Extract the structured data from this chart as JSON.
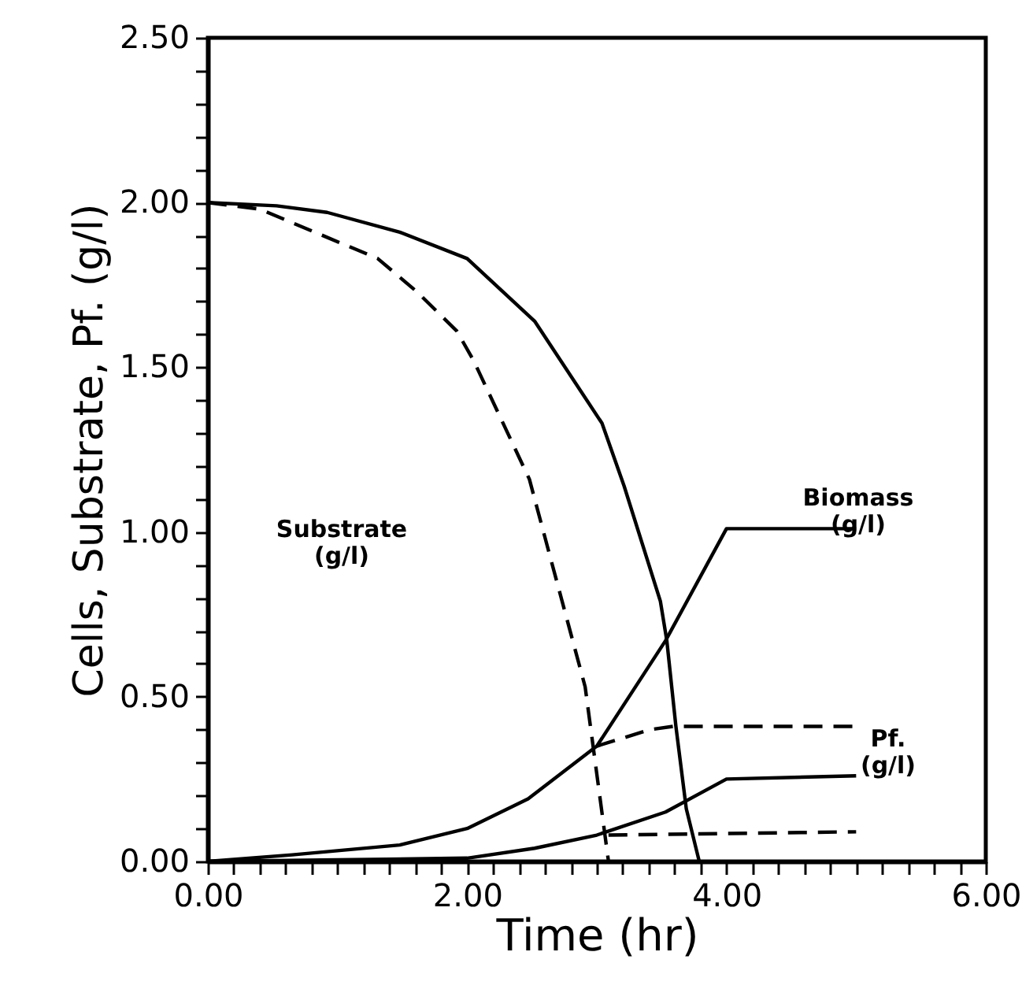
{
  "chart_data": {
    "type": "line",
    "xlabel": "Time  (hr)",
    "ylabel": "Cells,  Substrate,  Pf.  (g/l)",
    "xlim": [
      0,
      6
    ],
    "ylim": [
      0,
      2.5
    ],
    "marker": "none",
    "xticks": [
      {
        "value": 0,
        "label": "0.00"
      },
      {
        "value": 0.2,
        "label": null
      },
      {
        "value": 0.4,
        "label": null
      },
      {
        "value": 0.6,
        "label": null
      },
      {
        "value": 0.8,
        "label": null
      },
      {
        "value": 1,
        "label": null
      },
      {
        "value": 1.2,
        "label": null
      },
      {
        "value": 1.4,
        "label": null
      },
      {
        "value": 1.6,
        "label": null
      },
      {
        "value": 1.8,
        "label": null
      },
      {
        "value": 2,
        "label": "2.00"
      },
      {
        "value": 2.2,
        "label": null
      },
      {
        "value": 2.4,
        "label": null
      },
      {
        "value": 2.6,
        "label": null
      },
      {
        "value": 2.8,
        "label": null
      },
      {
        "value": 3,
        "label": null
      },
      {
        "value": 3.2,
        "label": null
      },
      {
        "value": 3.4,
        "label": null
      },
      {
        "value": 3.6,
        "label": null
      },
      {
        "value": 3.8,
        "label": null
      },
      {
        "value": 4,
        "label": "4.00"
      },
      {
        "value": 4.2,
        "label": null
      },
      {
        "value": 4.4,
        "label": null
      },
      {
        "value": 4.6,
        "label": null
      },
      {
        "value": 4.8,
        "label": null
      },
      {
        "value": 5,
        "label": null
      },
      {
        "value": 5.2,
        "label": null
      },
      {
        "value": 5.4,
        "label": null
      },
      {
        "value": 5.6,
        "label": null
      },
      {
        "value": 5.8,
        "label": null
      },
      {
        "value": 6,
        "label": "6.00"
      }
    ],
    "yticks": [
      {
        "value": 0,
        "label": "0.00"
      },
      {
        "value": 0.1,
        "label": null
      },
      {
        "value": 0.2,
        "label": null
      },
      {
        "value": 0.3,
        "label": null
      },
      {
        "value": 0.4,
        "label": null
      },
      {
        "value": 0.5,
        "label": "0.50"
      },
      {
        "value": 0.6,
        "label": null
      },
      {
        "value": 0.7,
        "label": null
      },
      {
        "value": 0.8,
        "label": null
      },
      {
        "value": 0.9,
        "label": null
      },
      {
        "value": 1,
        "label": "1.00"
      },
      {
        "value": 1.1,
        "label": null
      },
      {
        "value": 1.2,
        "label": null
      },
      {
        "value": 1.3,
        "label": null
      },
      {
        "value": 1.4,
        "label": null
      },
      {
        "value": 1.5,
        "label": "1.50"
      },
      {
        "value": 1.6,
        "label": null
      },
      {
        "value": 1.7,
        "label": null
      },
      {
        "value": 1.8,
        "label": null
      },
      {
        "value": 1.9,
        "label": null
      },
      {
        "value": 2,
        "label": "2.00"
      },
      {
        "value": 2.1,
        "label": null
      },
      {
        "value": 2.2,
        "label": null
      },
      {
        "value": 2.3,
        "label": null
      },
      {
        "value": 2.4,
        "label": null
      },
      {
        "value": 2.5,
        "label": "2.50"
      }
    ],
    "series": [
      {
        "color": "#000000",
        "line_style": "solid",
        "x": [
          0,
          0.53,
          0.92,
          1.48,
          2.0,
          2.52,
          3.04,
          3.21,
          3.49,
          3.54,
          3.61,
          3.69,
          3.79
        ],
        "values": [
          2.0,
          1.99,
          1.97,
          1.91,
          1.83,
          1.64,
          1.33,
          1.14,
          0.79,
          0.67,
          0.41,
          0.16,
          0
        ]
      },
      {
        "color": "#000000",
        "line_style": "dashed",
        "x": [
          0,
          0.4,
          1.31,
          1.61,
          1.92,
          2.05,
          2.48,
          2.65,
          2.91,
          3.09
        ],
        "values": [
          2.0,
          1.98,
          1.83,
          1.73,
          1.61,
          1.52,
          1.16,
          0.91,
          0.53,
          0
        ]
      },
      {
        "color": "#000000",
        "line_style": "solid",
        "x": [
          0,
          0.65,
          1.48,
          2.0,
          2.47,
          3.0,
          3.53,
          4.0,
          5.0
        ],
        "values": [
          0,
          0.02,
          0.05,
          0.1,
          0.19,
          0.35,
          0.67,
          1.01,
          1.01
        ]
      },
      {
        "color": "#000000",
        "line_style": "solid",
        "x": [
          0,
          2.0,
          2.52,
          3.0,
          3.53,
          4.0,
          5.0
        ],
        "values": [
          0,
          0.01,
          0.04,
          0.08,
          0.15,
          0.25,
          0.26
        ]
      },
      {
        "color": "#000000",
        "line_style": "dashed",
        "x": [
          3.0,
          3.41,
          3.59,
          5.0
        ],
        "values": [
          0.35,
          0.4,
          0.41,
          0.41
        ]
      },
      {
        "color": "#000000",
        "line_style": "dashed",
        "x": [
          3.09,
          5.0
        ],
        "values": [
          0.08,
          0.09
        ]
      }
    ],
    "annotations": [
      "Substrate\n(g/l)",
      "Biomass\n(g/l)",
      "Pf.\n(g/l)"
    ]
  }
}
